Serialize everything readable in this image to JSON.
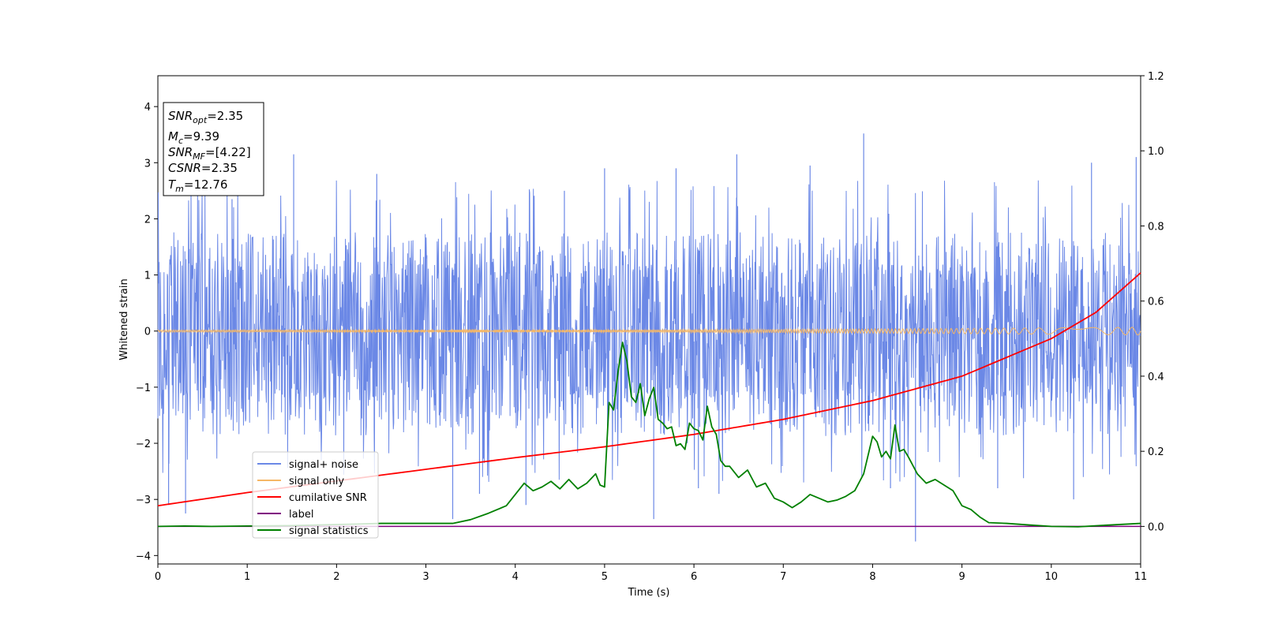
{
  "chart_data": {
    "type": "line",
    "xlabel": "Time (s)",
    "ylabel": "Whitened strain",
    "xlim": [
      0,
      11
    ],
    "ylim_left": [
      -4.15,
      4.55
    ],
    "ylim_right": [
      -0.1,
      1.2
    ],
    "xticks": [
      0,
      1,
      2,
      3,
      4,
      5,
      6,
      7,
      8,
      9,
      10,
      11
    ],
    "yticks_left": [
      -4,
      -3,
      -2,
      -1,
      0,
      1,
      2,
      3,
      4
    ],
    "yticks_right": [
      "0.0",
      "0.2",
      "0.4",
      "0.6",
      "0.8",
      "1.0",
      "1.2"
    ],
    "legend_location": "lower-left",
    "series": [
      {
        "name": "signal+ noise",
        "axis": "left",
        "color": "#6b88e6",
        "style": "dense noise trace",
        "band": {
          "typical_low": -1.7,
          "typical_high": 1.6,
          "min": -3.75,
          "max": 3.52
        },
        "spikes": [
          {
            "x": 0.12,
            "y": -3.1
          },
          {
            "x": 0.31,
            "y": -3.25
          },
          {
            "x": 0.83,
            "y": 2.35
          },
          {
            "x": 1.52,
            "y": 3.15
          },
          {
            "x": 2.45,
            "y": 2.8
          },
          {
            "x": 3.3,
            "y": -3.35
          },
          {
            "x": 3.6,
            "y": -2.9
          },
          {
            "x": 4.12,
            "y": -3.1
          },
          {
            "x": 4.55,
            "y": 2.5
          },
          {
            "x": 5.0,
            "y": 2.9
          },
          {
            "x": 5.55,
            "y": -3.35
          },
          {
            "x": 5.8,
            "y": 2.9
          },
          {
            "x": 6.05,
            "y": -2.8
          },
          {
            "x": 6.28,
            "y": -2.9
          },
          {
            "x": 6.48,
            "y": 3.15
          },
          {
            "x": 7.9,
            "y": 3.52
          },
          {
            "x": 7.3,
            "y": 2.95
          },
          {
            "x": 8.48,
            "y": -3.75
          },
          {
            "x": 8.2,
            "y": -2.8
          },
          {
            "x": 9.4,
            "y": -2.8
          },
          {
            "x": 10.25,
            "y": -3.0
          },
          {
            "x": 10.45,
            "y": 3.0
          },
          {
            "x": 10.95,
            "y": 3.1
          }
        ]
      },
      {
        "name": "signal only",
        "axis": "left",
        "color": "#f5b766",
        "style": "chirp oscillating around 0, amplitude growing with time",
        "amplitude_start": 0.02,
        "amplitude_end": 0.07
      },
      {
        "name": "cumilative SNR",
        "axis": "right",
        "color": "#ff0000",
        "x": [
          0,
          1,
          2,
          3,
          4,
          5,
          6,
          7,
          8,
          9,
          10,
          10.5,
          11
        ],
        "y": [
          0.055,
          0.09,
          0.121,
          0.152,
          0.183,
          0.212,
          0.245,
          0.285,
          0.335,
          0.4,
          0.5,
          0.57,
          0.675
        ]
      },
      {
        "name": "label",
        "axis": "right",
        "color": "#800080",
        "x": [
          0,
          11
        ],
        "y": [
          0,
          0
        ]
      },
      {
        "name": "signal statistics",
        "axis": "right",
        "color": "#008000",
        "x": [
          0,
          0.3,
          0.6,
          1.0,
          1.5,
          2.0,
          2.2,
          2.5,
          3.0,
          3.3,
          3.5,
          3.7,
          3.9,
          4.0,
          4.1,
          4.2,
          4.3,
          4.4,
          4.5,
          4.6,
          4.7,
          4.8,
          4.9,
          4.95,
          5.0,
          5.05,
          5.1,
          5.15,
          5.2,
          5.25,
          5.3,
          5.35,
          5.4,
          5.45,
          5.5,
          5.55,
          5.6,
          5.65,
          5.7,
          5.75,
          5.8,
          5.85,
          5.9,
          5.95,
          6.0,
          6.05,
          6.1,
          6.15,
          6.2,
          6.25,
          6.3,
          6.35,
          6.4,
          6.5,
          6.6,
          6.7,
          6.8,
          6.9,
          7.0,
          7.1,
          7.2,
          7.3,
          7.4,
          7.5,
          7.6,
          7.7,
          7.8,
          7.9,
          8.0,
          8.05,
          8.1,
          8.15,
          8.2,
          8.25,
          8.3,
          8.35,
          8.4,
          8.5,
          8.6,
          8.7,
          8.8,
          8.9,
          9.0,
          9.1,
          9.2,
          9.3,
          9.5,
          9.8,
          10.0,
          10.3,
          10.6,
          11.0
        ],
        "y": [
          0,
          0.001,
          0.0,
          0.001,
          0.002,
          0.005,
          0.006,
          0.008,
          0.008,
          0.008,
          0.018,
          0.035,
          0.055,
          0.085,
          0.115,
          0.095,
          0.105,
          0.12,
          0.1,
          0.125,
          0.1,
          0.115,
          0.14,
          0.11,
          0.105,
          0.33,
          0.31,
          0.41,
          0.49,
          0.44,
          0.345,
          0.33,
          0.38,
          0.295,
          0.34,
          0.37,
          0.285,
          0.275,
          0.26,
          0.265,
          0.215,
          0.22,
          0.205,
          0.275,
          0.26,
          0.255,
          0.23,
          0.32,
          0.265,
          0.245,
          0.175,
          0.16,
          0.16,
          0.13,
          0.15,
          0.105,
          0.115,
          0.075,
          0.065,
          0.05,
          0.065,
          0.085,
          0.075,
          0.065,
          0.07,
          0.08,
          0.095,
          0.14,
          0.24,
          0.225,
          0.185,
          0.2,
          0.18,
          0.27,
          0.2,
          0.205,
          0.185,
          0.14,
          0.115,
          0.125,
          0.11,
          0.095,
          0.055,
          0.045,
          0.025,
          0.01,
          0.008,
          0.003,
          0.0,
          -0.001,
          0.003,
          0.008
        ]
      }
    ],
    "annotation_box": {
      "lines": [
        {
          "base": "SNR",
          "sub": "opt",
          "value": "=2.35"
        },
        {
          "base": "M",
          "sub": "c",
          "value": "=9.39"
        },
        {
          "base": "SNR",
          "sub": "MF",
          "value": "=[4.22]"
        },
        {
          "base": "CSNR",
          "sub": "",
          "value": "=2.35"
        },
        {
          "base": "T",
          "sub": "m",
          "value": "=12.76"
        }
      ]
    }
  }
}
